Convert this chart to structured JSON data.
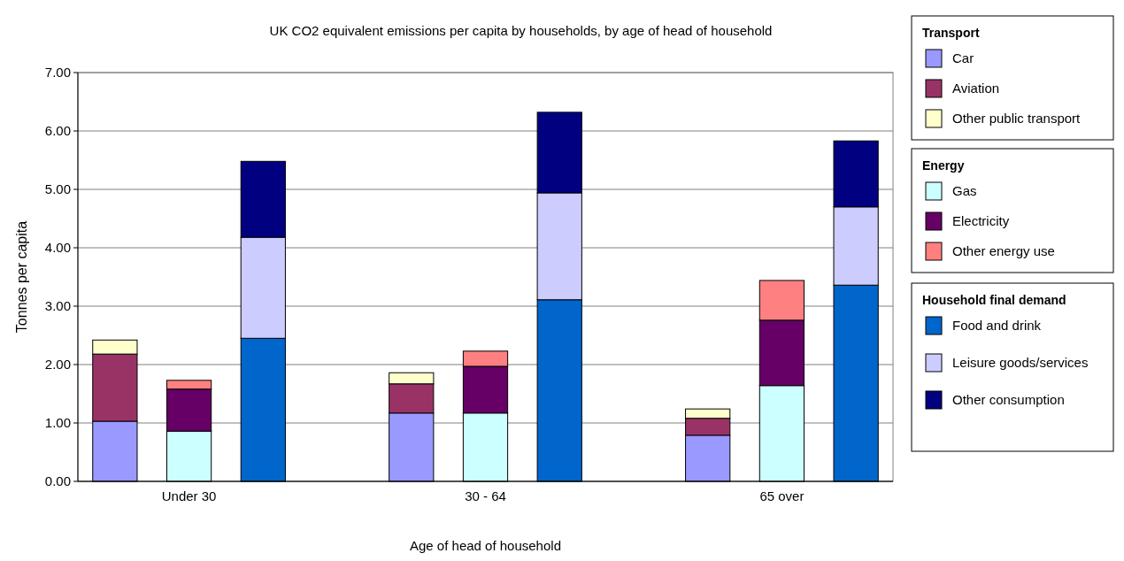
{
  "chart_data": {
    "type": "bar",
    "stacked": true,
    "title": "UK CO2 equivalent emissions per capita by households, by age of head of household",
    "xlabel": "Age of head of household",
    "ylabel": "Tonnes per capita",
    "categories": [
      null,
      "Under 30",
      null,
      null,
      null,
      "30 - 64",
      null,
      null,
      null,
      "65 over",
      null
    ],
    "series": [
      {
        "name": "Car",
        "color": "#9999ff",
        "values": [
          1.03,
          null,
          null,
          null,
          1.17,
          null,
          null,
          null,
          0.79,
          null,
          null
        ]
      },
      {
        "name": "Aviation",
        "color": "#993366",
        "values": [
          1.15,
          null,
          null,
          null,
          0.5,
          null,
          null,
          null,
          0.29,
          null,
          null
        ]
      },
      {
        "name": "Other public transport",
        "color": "#ffffcc",
        "values": [
          0.24,
          null,
          null,
          null,
          0.19,
          null,
          null,
          null,
          0.16,
          null,
          null
        ]
      },
      {
        "name": "Gas",
        "color": "#ccffff",
        "values": [
          null,
          0.86,
          null,
          null,
          null,
          1.17,
          null,
          null,
          null,
          1.64,
          null
        ]
      },
      {
        "name": "Electricity",
        "color": "#660066",
        "values": [
          null,
          0.72,
          null,
          null,
          null,
          0.8,
          null,
          null,
          null,
          1.12,
          null
        ]
      },
      {
        "name": "Other energy use",
        "color": "#ff8080",
        "values": [
          null,
          0.15,
          null,
          null,
          null,
          0.26,
          null,
          null,
          null,
          0.68,
          null
        ]
      },
      {
        "name": "Food and drink",
        "color": "#0066cc",
        "values": [
          null,
          null,
          2.45,
          null,
          null,
          null,
          3.11,
          null,
          null,
          null,
          3.36
        ]
      },
      {
        "name": "Leisure goods/services",
        "color": "#ccccff",
        "values": [
          null,
          null,
          1.73,
          null,
          null,
          null,
          1.83,
          null,
          null,
          null,
          1.34
        ]
      },
      {
        "name": "Other consumption",
        "color": "#000080",
        "values": [
          null,
          null,
          1.3,
          null,
          null,
          null,
          1.38,
          null,
          null,
          null,
          1.13
        ]
      }
    ],
    "annotations": [
      "Transport",
      "Energy",
      "Household final demand"
    ],
    "ylim": [
      0,
      7
    ],
    "yticks": [
      {
        "value": 0,
        "label": "0.00"
      },
      {
        "value": 1,
        "label": "1.00"
      },
      {
        "value": 2,
        "label": "2.00"
      },
      {
        "value": 3,
        "label": "3.00"
      },
      {
        "value": 4,
        "label": "4.00"
      },
      {
        "value": 5,
        "label": "5.00"
      },
      {
        "value": 6,
        "label": "6.00"
      },
      {
        "value": 7,
        "label": "7.00"
      }
    ],
    "grid": "y",
    "legend": "right"
  }
}
